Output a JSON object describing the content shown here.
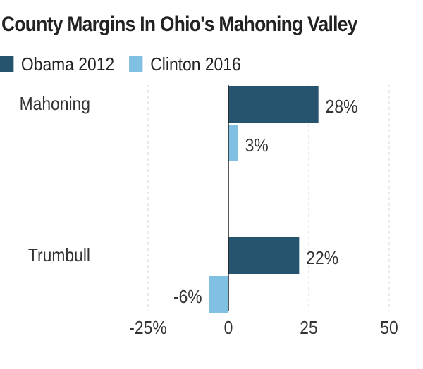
{
  "title": "County Margins In Ohio's Mahoning Valley",
  "legend": [
    {
      "label": "Obama 2012",
      "color": "#26546e"
    },
    {
      "label": "Clinton 2016",
      "color": "#7fc0e3"
    }
  ],
  "chart_data": {
    "type": "bar",
    "orientation": "horizontal",
    "title": "County Margins In Ohio's Mahoning Valley",
    "categories": [
      "Mahoning",
      "Trumbull"
    ],
    "series": [
      {
        "name": "Obama 2012",
        "color": "#26546e",
        "values": [
          28,
          22
        ],
        "labels": [
          "28%",
          "22%"
        ]
      },
      {
        "name": "Clinton 2016",
        "color": "#7fc0e3",
        "values": [
          3,
          -6
        ],
        "labels": [
          "3%",
          "-6%"
        ]
      }
    ],
    "xlim": [
      -25,
      50
    ],
    "ticks": [
      -25,
      0,
      25,
      50
    ],
    "tick_labels": [
      "-25%",
      "0",
      "25",
      "50"
    ],
    "grid": true,
    "legend_position": "top-left"
  }
}
